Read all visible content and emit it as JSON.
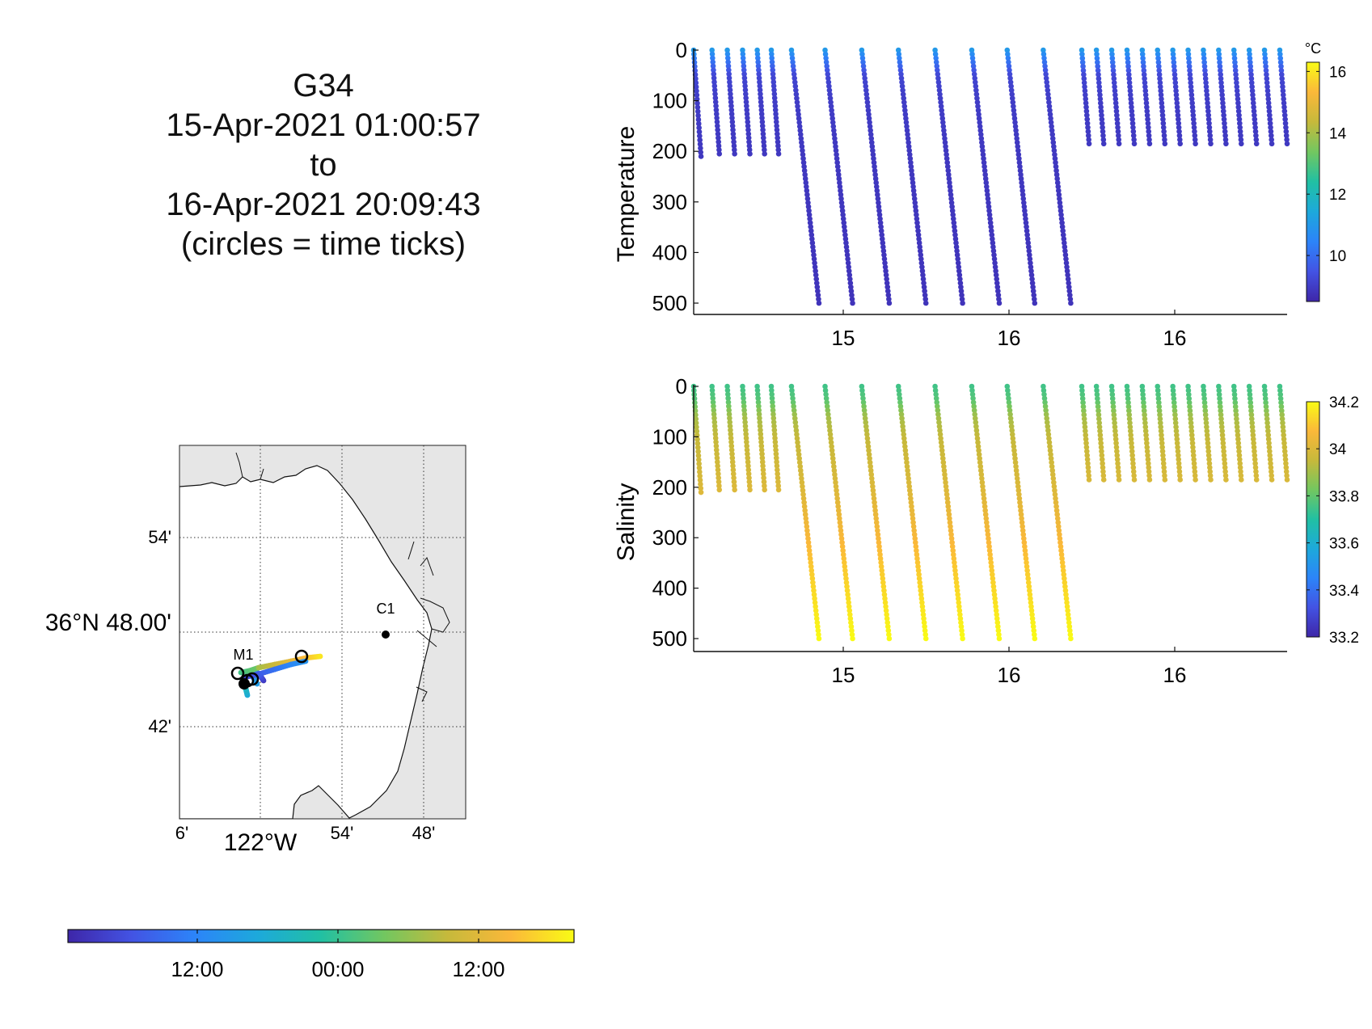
{
  "title": {
    "lines": [
      "G34",
      "15-Apr-2021 01:00:57",
      "to",
      "16-Apr-2021 20:09:43",
      "(circles = time ticks)"
    ]
  },
  "colors": {
    "parula": [
      "#3e26a8",
      "#4353e3",
      "#2c84f9",
      "#1da9db",
      "#21c0a3",
      "#72c760",
      "#c6b93b",
      "#fbb83a",
      "#f9fb15"
    ]
  },
  "map": {
    "lat_labels": [
      "54'",
      "36°N 48.00'",
      "42'"
    ],
    "lon_labels": [
      "6'",
      "122°W",
      "54'",
      "48'"
    ],
    "stations": [
      {
        "name": "C1"
      },
      {
        "name": "M1"
      }
    ],
    "background": "#e6e6e6",
    "water": "#ffffff"
  },
  "time_colorbar": {
    "tick_labels": [
      "12:00",
      "00:00",
      "12:00"
    ]
  },
  "chart_data": [
    {
      "type": "scatter",
      "panel": "temperature",
      "ylabel": "Temperature",
      "colorbar_unit": "°C",
      "ylim": [
        0,
        500
      ],
      "y_reversed": true,
      "yticks": [
        0,
        100,
        200,
        300,
        400,
        500
      ],
      "xtick_labels": [
        "15",
        "16",
        "16"
      ],
      "clim": [
        8.5,
        16.3
      ],
      "colorbar_ticks": [
        10,
        12,
        14,
        16
      ],
      "profiles": [
        {
          "x0": 0.0,
          "x1": 0.12,
          "bottom": 210
        },
        {
          "x0": 0.3,
          "x1": 0.42,
          "bottom": 205
        },
        {
          "x0": 0.55,
          "x1": 0.67,
          "bottom": 205
        },
        {
          "x0": 0.8,
          "x1": 0.92,
          "bottom": 205
        },
        {
          "x0": 1.04,
          "x1": 1.16,
          "bottom": 205
        },
        {
          "x0": 1.27,
          "x1": 1.39,
          "bottom": 205
        },
        {
          "x0": 1.6,
          "x1": 2.05,
          "bottom": 500
        },
        {
          "x0": 2.15,
          "x1": 2.6,
          "bottom": 500
        },
        {
          "x0": 2.75,
          "x1": 3.2,
          "bottom": 500
        },
        {
          "x0": 3.35,
          "x1": 3.8,
          "bottom": 500
        },
        {
          "x0": 3.95,
          "x1": 4.4,
          "bottom": 500
        },
        {
          "x0": 4.55,
          "x1": 5.0,
          "bottom": 500
        },
        {
          "x0": 5.13,
          "x1": 5.58,
          "bottom": 500
        },
        {
          "x0": 5.72,
          "x1": 6.17,
          "bottom": 500
        },
        {
          "x0": 6.35,
          "x1": 6.47,
          "bottom": 185
        },
        {
          "x0": 6.59,
          "x1": 6.71,
          "bottom": 185
        },
        {
          "x0": 6.84,
          "x1": 6.96,
          "bottom": 185
        },
        {
          "x0": 7.09,
          "x1": 7.21,
          "bottom": 185
        },
        {
          "x0": 7.34,
          "x1": 7.46,
          "bottom": 185
        },
        {
          "x0": 7.59,
          "x1": 7.71,
          "bottom": 185
        },
        {
          "x0": 7.84,
          "x1": 7.96,
          "bottom": 185
        },
        {
          "x0": 8.09,
          "x1": 8.21,
          "bottom": 185
        },
        {
          "x0": 8.34,
          "x1": 8.46,
          "bottom": 185
        },
        {
          "x0": 8.59,
          "x1": 8.71,
          "bottom": 185
        },
        {
          "x0": 8.84,
          "x1": 8.96,
          "bottom": 185
        },
        {
          "x0": 9.09,
          "x1": 9.21,
          "bottom": 185
        },
        {
          "x0": 9.34,
          "x1": 9.46,
          "bottom": 185
        },
        {
          "x0": 9.59,
          "x1": 9.71,
          "bottom": 185
        }
      ],
      "value_profile": [
        [
          0,
          11.0
        ],
        [
          20,
          10.2
        ],
        [
          50,
          9.2
        ],
        [
          100,
          9.0
        ],
        [
          200,
          8.9
        ],
        [
          500,
          8.8
        ]
      ]
    },
    {
      "type": "scatter",
      "panel": "salinity",
      "ylabel": "Salinity",
      "ylim": [
        0,
        500
      ],
      "y_reversed": true,
      "yticks": [
        0,
        100,
        200,
        300,
        400,
        500
      ],
      "xtick_labels": [
        "15",
        "16",
        "16"
      ],
      "clim": [
        33.2,
        34.2
      ],
      "colorbar_ticks": [
        33.2,
        33.4,
        33.6,
        33.8,
        34,
        34.2
      ],
      "profiles": [
        {
          "x0": 0.0,
          "x1": 0.12,
          "bottom": 210
        },
        {
          "x0": 0.3,
          "x1": 0.42,
          "bottom": 205
        },
        {
          "x0": 0.55,
          "x1": 0.67,
          "bottom": 205
        },
        {
          "x0": 0.8,
          "x1": 0.92,
          "bottom": 205
        },
        {
          "x0": 1.04,
          "x1": 1.16,
          "bottom": 205
        },
        {
          "x0": 1.27,
          "x1": 1.39,
          "bottom": 205
        },
        {
          "x0": 1.6,
          "x1": 2.05,
          "bottom": 500
        },
        {
          "x0": 2.15,
          "x1": 2.6,
          "bottom": 500
        },
        {
          "x0": 2.75,
          "x1": 3.2,
          "bottom": 500
        },
        {
          "x0": 3.35,
          "x1": 3.8,
          "bottom": 500
        },
        {
          "x0": 3.95,
          "x1": 4.4,
          "bottom": 500
        },
        {
          "x0": 4.55,
          "x1": 5.0,
          "bottom": 500
        },
        {
          "x0": 5.13,
          "x1": 5.58,
          "bottom": 500
        },
        {
          "x0": 5.72,
          "x1": 6.17,
          "bottom": 500
        },
        {
          "x0": 6.35,
          "x1": 6.47,
          "bottom": 185
        },
        {
          "x0": 6.59,
          "x1": 6.71,
          "bottom": 185
        },
        {
          "x0": 6.84,
          "x1": 6.96,
          "bottom": 185
        },
        {
          "x0": 7.09,
          "x1": 7.21,
          "bottom": 185
        },
        {
          "x0": 7.34,
          "x1": 7.46,
          "bottom": 185
        },
        {
          "x0": 7.59,
          "x1": 7.71,
          "bottom": 185
        },
        {
          "x0": 7.84,
          "x1": 7.96,
          "bottom": 185
        },
        {
          "x0": 8.09,
          "x1": 8.21,
          "bottom": 185
        },
        {
          "x0": 8.34,
          "x1": 8.46,
          "bottom": 185
        },
        {
          "x0": 8.59,
          "x1": 8.71,
          "bottom": 185
        },
        {
          "x0": 8.84,
          "x1": 8.96,
          "bottom": 185
        },
        {
          "x0": 9.09,
          "x1": 9.21,
          "bottom": 185
        },
        {
          "x0": 9.34,
          "x1": 9.46,
          "bottom": 185
        },
        {
          "x0": 9.59,
          "x1": 9.71,
          "bottom": 185
        }
      ],
      "value_profile": [
        [
          0,
          33.75
        ],
        [
          25,
          33.78
        ],
        [
          60,
          33.9
        ],
        [
          100,
          33.95
        ],
        [
          200,
          34.0
        ],
        [
          350,
          34.1
        ],
        [
          500,
          34.2
        ]
      ]
    }
  ]
}
